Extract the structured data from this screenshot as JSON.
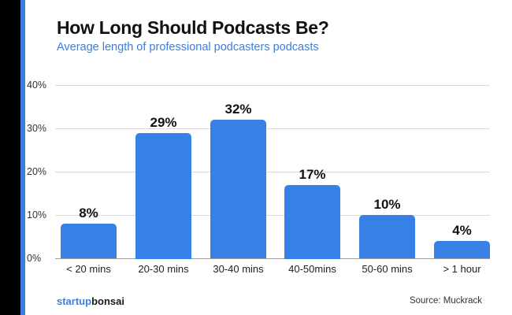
{
  "header": {
    "title": "How Long Should Podcasts Be?",
    "subtitle": "Average length of professional podcasters podcasts"
  },
  "footer": {
    "logo_part1": "startup",
    "logo_part2": "bonsai",
    "source": "Source: Muckrack"
  },
  "colors": {
    "bar": "#3780e5",
    "accent": "#3b7fe0",
    "sidebar": "#000000"
  },
  "axis": {
    "yticks": [
      "0%",
      "10%",
      "20%",
      "30%",
      "40%"
    ]
  },
  "bars": [
    {
      "category": "< 20 mins",
      "label": "8%"
    },
    {
      "category": "20-30 mins",
      "label": "29%"
    },
    {
      "category": "30-40 mins",
      "label": "32%"
    },
    {
      "category": "40-50mins",
      "label": "17%"
    },
    {
      "category": "50-60 mins",
      "label": "10%"
    },
    {
      "category": "> 1 hour",
      "label": "4%"
    }
  ],
  "chart_data": {
    "type": "bar",
    "title": "How Long Should Podcasts Be?",
    "subtitle": "Average length of professional podcasters podcasts",
    "categories": [
      "< 20 mins",
      "20-30 mins",
      "30-40 mins",
      "40-50mins",
      "50-60 mins",
      "> 1 hour"
    ],
    "values": [
      8,
      29,
      32,
      17,
      10,
      4
    ],
    "data_labels": [
      "8%",
      "29%",
      "32%",
      "17%",
      "10%",
      "4%"
    ],
    "xlabel": "",
    "ylabel": "",
    "ylim": [
      0,
      40
    ],
    "yticks": [
      0,
      10,
      20,
      30,
      40
    ],
    "ytick_format": "percent",
    "grid": true,
    "legend": null,
    "source": "Source: Muckrack"
  }
}
